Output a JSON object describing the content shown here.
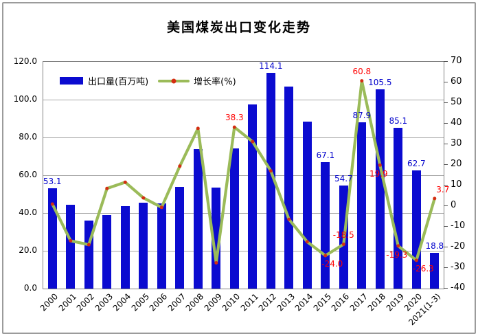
{
  "title": "美国煤炭出口变化走势",
  "legend": {
    "items": [
      {
        "label": "出口量(百万吨)",
        "type": "bar"
      },
      {
        "label": "增长率(%)",
        "type": "line"
      }
    ]
  },
  "colors": {
    "bar": "#0b0bd0",
    "line": "#9bbb59",
    "marker": "#d42e12",
    "bar_label": "#0000cc",
    "line_label": "#ff0000",
    "grid": "#a6a6a6",
    "plot_border": "#808080",
    "frame_border": "#9b9b9b",
    "axis_text": "#000000"
  },
  "chart_data": {
    "type": "combo-bar-line",
    "title": "美国煤炭出口变化走势",
    "categories": [
      "2000",
      "2001",
      "2002",
      "2003",
      "2004",
      "2005",
      "2006",
      "2007",
      "2008",
      "2009",
      "2010",
      "2011",
      "2012",
      "2013",
      "2014",
      "2015",
      "2016",
      "2017",
      "2018",
      "2019",
      "2020",
      "2021(1-3)"
    ],
    "series": [
      {
        "name": "出口量(百万吨)",
        "type": "bar",
        "axis": "left",
        "values": [
          53.1,
          44.2,
          35.9,
          39.0,
          43.5,
          45.3,
          45.0,
          53.7,
          73.9,
          53.6,
          74.1,
          97.3,
          114.1,
          106.8,
          88.3,
          67.1,
          54.7,
          87.9,
          105.5,
          85.1,
          62.7,
          18.8
        ]
      },
      {
        "name": "增长率(%)",
        "type": "line",
        "axis": "right",
        "values": [
          1.0,
          -16.8,
          -18.7,
          8.6,
          11.6,
          4.0,
          -0.6,
          19.4,
          37.7,
          -27.5,
          38.3,
          31.3,
          17.1,
          -6.4,
          -17.3,
          -24.0,
          -18.5,
          60.8,
          19.9,
          -19.3,
          -26.3,
          3.7
        ]
      }
    ],
    "left_axis": {
      "min": 0,
      "max": 120,
      "step": 20,
      "tick_labels": [
        "120.0",
        "100.0",
        "80.0",
        "60.0",
        "40.0",
        "20.0",
        "0.0"
      ]
    },
    "right_axis": {
      "min": -40,
      "max": 70,
      "step": 10,
      "tick_labels": [
        "70",
        "60",
        "50",
        "40",
        "30",
        "20",
        "10",
        "0",
        "-10",
        "-20",
        "-30",
        "-40"
      ]
    },
    "grid": true,
    "legend_position": "top-left-inside",
    "bar_value_labels": [
      {
        "index": 0,
        "text": "53.1"
      },
      {
        "index": 12,
        "text": "114.1"
      },
      {
        "index": 15,
        "text": "67.1"
      },
      {
        "index": 16,
        "text": "54.7"
      },
      {
        "index": 17,
        "text": "87.9"
      },
      {
        "index": 18,
        "text": "105.5"
      },
      {
        "index": 19,
        "text": "85.1"
      },
      {
        "index": 20,
        "text": "62.7"
      },
      {
        "index": 21,
        "text": "18.8"
      }
    ],
    "line_value_labels": [
      {
        "index": 10,
        "text": "38.3",
        "pos": "above"
      },
      {
        "index": 15,
        "text": "-24.0",
        "pos": "below-right"
      },
      {
        "index": 16,
        "text": "-18.5",
        "pos": "above"
      },
      {
        "index": 17,
        "text": "60.8",
        "pos": "above"
      },
      {
        "index": 18,
        "text": "19.9",
        "pos": "below"
      },
      {
        "index": 19,
        "text": "-19.3",
        "pos": "below"
      },
      {
        "index": 20,
        "text": "-26.3",
        "pos": "below-right"
      },
      {
        "index": 21,
        "text": "3.7",
        "pos": "above-right"
      }
    ]
  }
}
